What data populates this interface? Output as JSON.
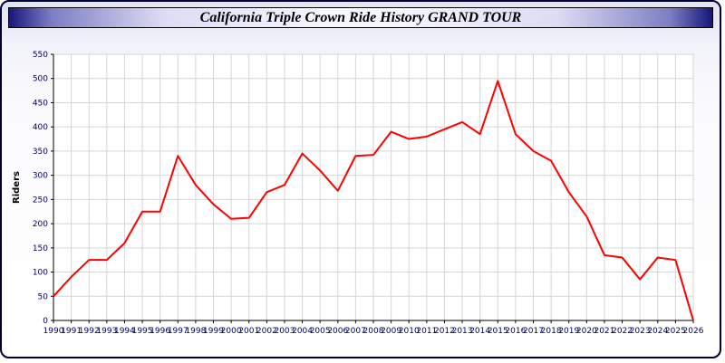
{
  "header": {
    "title": "California Triple Crown Ride History GRAND TOUR",
    "bar_edge_color": "#16167c",
    "bar_center_color": "#f6f6ff"
  },
  "page": {
    "background_color": "#f2f2fa",
    "border_color": "#000033"
  },
  "chart_data": {
    "type": "line",
    "title": "California Triple Crown Ride History GRAND TOUR",
    "xlabel": "",
    "ylabel": "Riders",
    "ylim": [
      0,
      550
    ],
    "ytick_step": 50,
    "grid": true,
    "legend_position": "none",
    "line_color": "#ff0000",
    "plot_bg": "#ffffff",
    "grid_color": "#d6d6d6",
    "axis_color": "#000000",
    "tick_color": "#000060",
    "x": [
      "1990",
      "1991",
      "1992",
      "1993",
      "1994",
      "1995",
      "1996",
      "1997",
      "1998",
      "1999",
      "2000",
      "2001",
      "2002",
      "2003",
      "2004",
      "2005",
      "2006",
      "2007",
      "2008",
      "2009",
      "2010",
      "2011",
      "2012",
      "2013",
      "2014",
      "2015",
      "2016",
      "2017",
      "2018",
      "2019",
      "2020",
      "2021",
      "2022",
      "2023",
      "2024",
      "2025",
      "2026"
    ],
    "series": [
      {
        "name": "Riders",
        "values": [
          50,
          90,
          125,
          125,
          160,
          225,
          225,
          340,
          280,
          240,
          210,
          212,
          265,
          280,
          345,
          310,
          268,
          340,
          342,
          390,
          375,
          380,
          395,
          410,
          385,
          495,
          385,
          350,
          330,
          265,
          215,
          135,
          130,
          85,
          130,
          125,
          0
        ]
      }
    ]
  }
}
